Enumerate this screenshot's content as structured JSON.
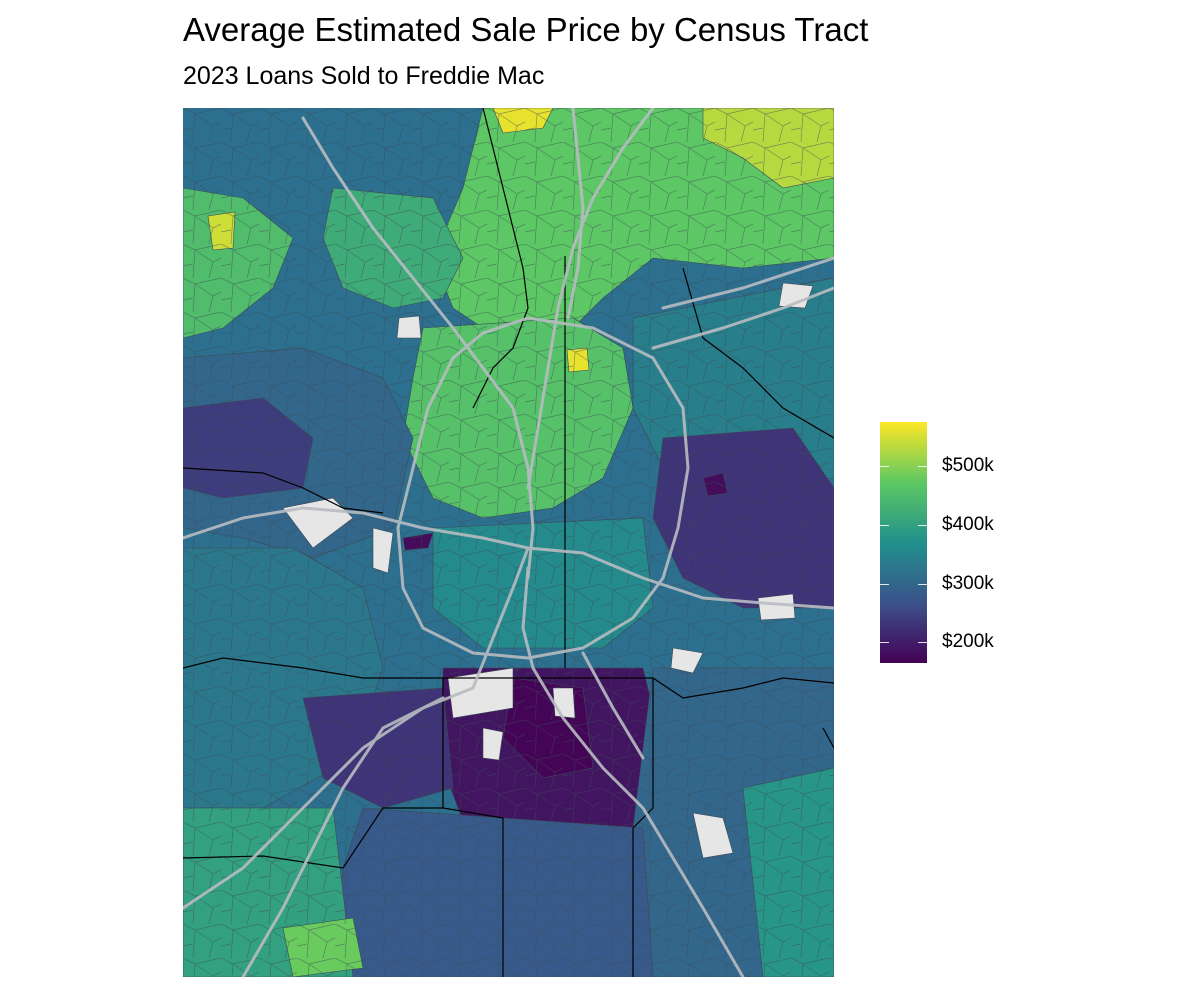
{
  "title": "Average Estimated Sale Price by Census Tract",
  "subtitle": "2023 Loans Sold to Freddie Mac",
  "legend": {
    "colors": [
      "#440154",
      "#3b528b",
      "#21908c",
      "#5dc863",
      "#fde725"
    ],
    "min_value": 165,
    "max_value": 575,
    "breaks": [
      {
        "value": 200,
        "label": "$200k"
      },
      {
        "value": 300,
        "label": "$300k"
      },
      {
        "value": 400,
        "label": "$400k"
      },
      {
        "value": 500,
        "label": "$500k"
      }
    ]
  },
  "map": {
    "colors": {
      "background": "#2c6f8e",
      "tract_border": "#3d4a55",
      "county_border": "#000000",
      "highway": "#b8bcc2",
      "no_data": "#e6e6e6"
    }
  }
}
